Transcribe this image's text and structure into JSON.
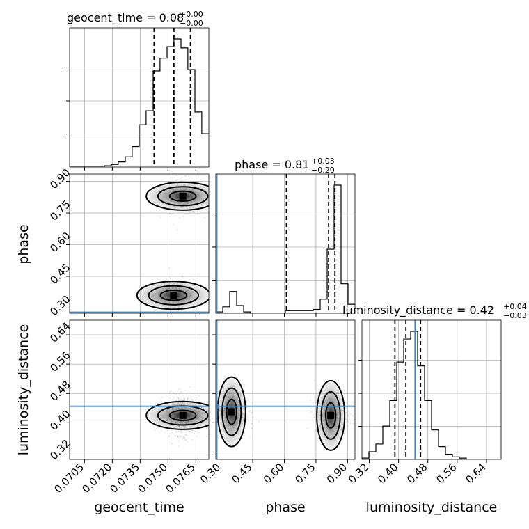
{
  "chart_data": {
    "type": "scatter",
    "subtype": "corner-plot",
    "parameters": [
      {
        "name": "geocent_time",
        "title_main": "geocent_time = 0.08",
        "title_plus": "+0.00",
        "title_minus": "−0.00"
      },
      {
        "name": "phase",
        "title_main": "phase = 0.81",
        "title_plus": "+0.03",
        "title_minus": "−0.20"
      },
      {
        "name": "luminosity_distance",
        "title_main": "luminosity_distance = 0.42",
        "title_plus": "+0.04",
        "title_minus": "−0.03"
      }
    ],
    "axis_labels": {
      "x": [
        "geocent_time",
        "phase",
        "luminosity_distance"
      ],
      "y": [
        "phase",
        "luminosity_distance"
      ]
    },
    "ranges": {
      "geocent_time": [
        0.0697,
        0.0772
      ],
      "phase": [
        0.275,
        0.935
      ],
      "luminosity_distance": [
        0.3,
        0.68
      ]
    },
    "ticks": {
      "geocent_time": [
        "0.0705",
        "0.0720",
        "0.0735",
        "0.0750",
        "0.0765"
      ],
      "phase": [
        "0.30",
        "0.45",
        "0.60",
        "0.75",
        "0.90"
      ],
      "luminosity_distance": [
        "0.32",
        "0.40",
        "0.48",
        "0.56",
        "0.64"
      ]
    },
    "truths": {
      "geocent_time": null,
      "phase": 0.28,
      "luminosity_distance": 0.445
    },
    "quantiles": {
      "geocent_time": [
        0.07425,
        0.07532,
        0.07621
      ],
      "phase": [
        0.61,
        0.81,
        0.84
      ],
      "luminosity_distance": [
        0.39,
        0.42,
        0.46
      ]
    },
    "histograms": {
      "geocent_time": {
        "edges": [
          0.0697,
          0.07007,
          0.07045,
          0.07082,
          0.0712,
          0.07157,
          0.07195,
          0.07232,
          0.0727,
          0.07307,
          0.07345,
          0.07382,
          0.0742,
          0.07457,
          0.07495,
          0.07532,
          0.0757,
          0.07607,
          0.07645,
          0.07682,
          0.0772
        ],
        "counts": [
          0,
          0,
          0,
          0,
          0,
          0.01,
          0.02,
          0.04,
          0.08,
          0.16,
          0.33,
          0.44,
          0.75,
          0.85,
          0.94,
          1.0,
          0.93,
          0.76,
          0.43,
          0.26
        ]
      },
      "phase": {
        "edges": [
          0.275,
          0.308,
          0.341,
          0.374,
          0.407,
          0.44,
          0.473,
          0.506,
          0.539,
          0.572,
          0.605,
          0.638,
          0.671,
          0.704,
          0.737,
          0.77,
          0.803,
          0.836,
          0.869,
          0.902,
          0.935
        ],
        "counts": [
          0.01,
          0.05,
          0.17,
          0.06,
          0.01,
          0.0,
          0.0,
          0.0,
          0.0,
          0.0,
          0.02,
          0.02,
          0.02,
          0.02,
          0.03,
          0.11,
          0.5,
          1.0,
          0.23,
          0.07
        ]
      },
      "luminosity_distance": {
        "edges": [
          0.3,
          0.319,
          0.338,
          0.357,
          0.376,
          0.395,
          0.414,
          0.433,
          0.452,
          0.471,
          0.49,
          0.509,
          0.528,
          0.547,
          0.566,
          0.585,
          0.604,
          0.623,
          0.642,
          0.661,
          0.68
        ],
        "counts": [
          0.01,
          0.06,
          0.12,
          0.26,
          0.46,
          0.76,
          0.94,
          1.0,
          0.73,
          0.46,
          0.23,
          0.1,
          0.04,
          0.02,
          0.01,
          0.0,
          0.0,
          0.0,
          0.0,
          0.0
        ]
      }
    },
    "modes": {
      "geocent_time|phase": [
        [
          0.0758,
          0.83
        ],
        [
          0.0753,
          0.36
        ]
      ],
      "geocent_time|luminosity_distance": [
        [
          0.0758,
          0.42
        ]
      ],
      "phase|luminosity_distance": [
        [
          0.35,
          0.43
        ],
        [
          0.82,
          0.42
        ]
      ]
    },
    "grid": true,
    "legend": "none"
  }
}
